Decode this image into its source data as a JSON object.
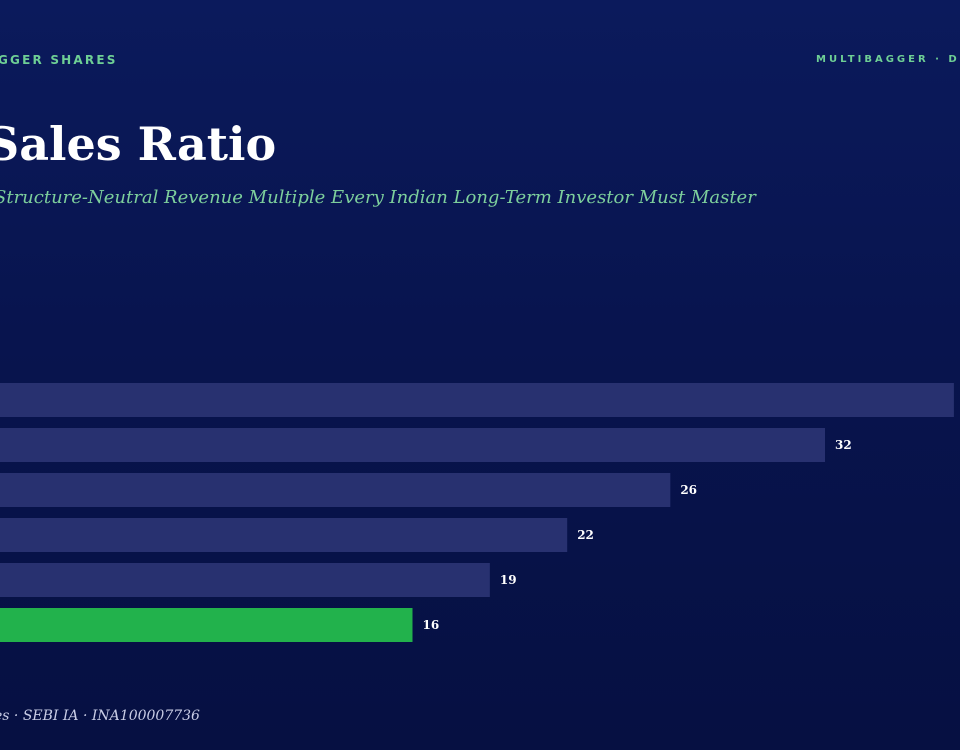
{
  "header": {
    "brand_left": "GGER SHARES",
    "brand_right": "MULTIBAGGER · D"
  },
  "title": "Sales Ratio",
  "subtitle": "Structure-Neutral Revenue Multiple Every Indian Long-Term Investor Must Master",
  "footer": "es · SEBI IA · INA100007736",
  "colors": {
    "bar": "#283170",
    "highlight_bar": "#22b24c",
    "value_label": "#ffffff",
    "accent_text": "#6ecf95"
  },
  "chart_data": {
    "type": "bar",
    "orientation": "horizontal",
    "categories": [
      "",
      "",
      "",
      "",
      "",
      ""
    ],
    "values": [
      37,
      32,
      26,
      22,
      19,
      16
    ],
    "labels": [
      "",
      "32",
      "26",
      "22",
      "19",
      "16"
    ],
    "highlight_index": 5,
    "xlim": [
      0,
      37
    ],
    "title": "",
    "xlabel": "",
    "ylabel": "",
    "grid": false,
    "legend": "none"
  }
}
